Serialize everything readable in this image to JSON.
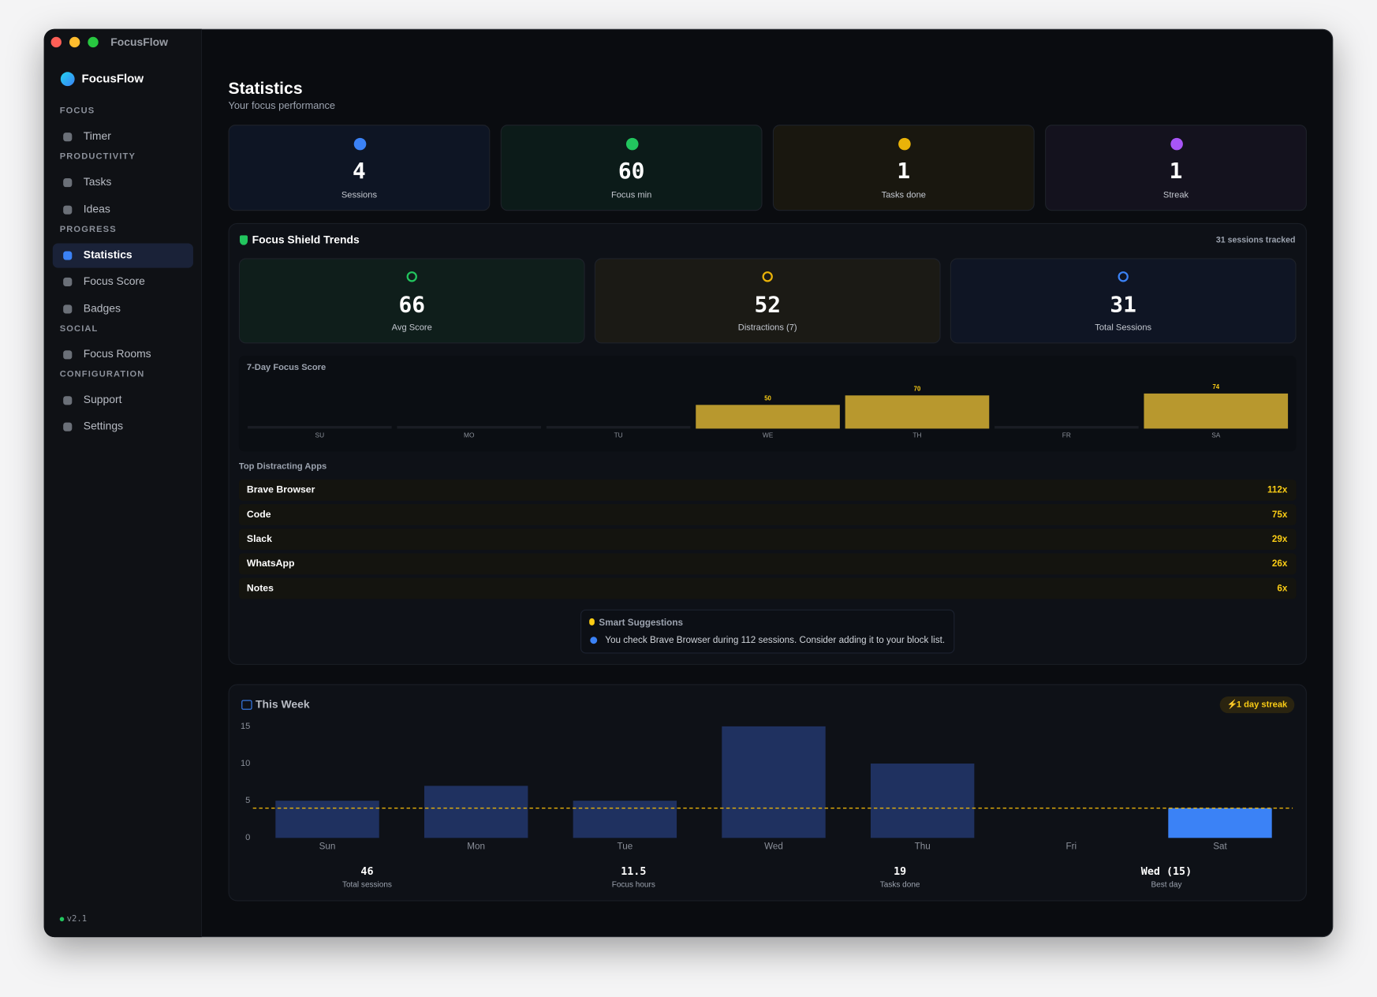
{
  "window": {
    "title": "FocusFlow"
  },
  "sidebar": {
    "brand": "FocusFlow",
    "sections": [
      {
        "label": "FOCUS",
        "items": [
          "Timer"
        ]
      },
      {
        "label": "PRODUCTIVITY",
        "items": [
          "Tasks",
          "Ideas"
        ]
      },
      {
        "label": "PROGRESS",
        "items": [
          "Statistics",
          "Focus Score",
          "Badges"
        ]
      },
      {
        "label": "SOCIAL",
        "items": [
          "Focus Rooms"
        ]
      },
      {
        "label": "CONFIGURATION",
        "items": [
          "Support",
          "Settings"
        ]
      }
    ],
    "version": "v2.1"
  },
  "header": {
    "title": "Statistics",
    "subtitle": "Your focus performance"
  },
  "stats": [
    {
      "value": 4,
      "label": "Sessions"
    },
    {
      "value": 60,
      "label": "Focus min"
    },
    {
      "value": 1,
      "label": "Tasks done"
    },
    {
      "value": 1,
      "label": "Streak"
    }
  ],
  "focus_shield": {
    "title": "Focus Shield Trends",
    "tracked": "31 sessions tracked",
    "cards": [
      {
        "value": 66,
        "label": "Avg Score"
      },
      {
        "value": 52,
        "label": "Distractions (7)"
      },
      {
        "value": 31,
        "label": "Total Sessions"
      }
    ],
    "score_chart": {
      "type": "bar",
      "title": "7-Day Focus Score",
      "categories": [
        "SU",
        "MO",
        "TU",
        "WE",
        "TH",
        "FR",
        "SA"
      ],
      "values": [
        null,
        null,
        null,
        50,
        70,
        null,
        74
      ],
      "ylim": [
        0,
        100
      ],
      "color": "#b8982e"
    },
    "top_apps": {
      "title": "Top Distracting Apps",
      "rows": [
        {
          "name": "Brave Browser",
          "count": "112x"
        },
        {
          "name": "Code",
          "count": "75x"
        },
        {
          "name": "Slack",
          "count": "29x"
        },
        {
          "name": "WhatsApp",
          "count": "26x"
        },
        {
          "name": "Notes",
          "count": "6x"
        }
      ]
    },
    "suggestions": {
      "title": "Smart Suggestions",
      "items": [
        "You check Brave Browser during 112 sessions. Consider adding it to your block list."
      ]
    }
  },
  "week": {
    "title": "This Week",
    "streak": "1 day streak",
    "chart": {
      "type": "bar",
      "categories": [
        "Sun",
        "Mon",
        "Tue",
        "Wed",
        "Thu",
        "Fri",
        "Sat"
      ],
      "values": [
        5,
        7,
        5,
        15,
        10,
        0,
        4
      ],
      "ylim": [
        0,
        15
      ],
      "yticks": [
        0,
        5,
        10,
        15
      ],
      "target": 4,
      "color": "#1f3160",
      "highlight_color": "#3b82f6",
      "highlight_index": 6
    },
    "summary": [
      {
        "value": 46,
        "label": "Total sessions"
      },
      {
        "value": 11.5,
        "label": "Focus hours"
      },
      {
        "value": 19,
        "label": "Tasks done"
      },
      {
        "value": "Wed (15)",
        "label": "Best day"
      }
    ]
  }
}
